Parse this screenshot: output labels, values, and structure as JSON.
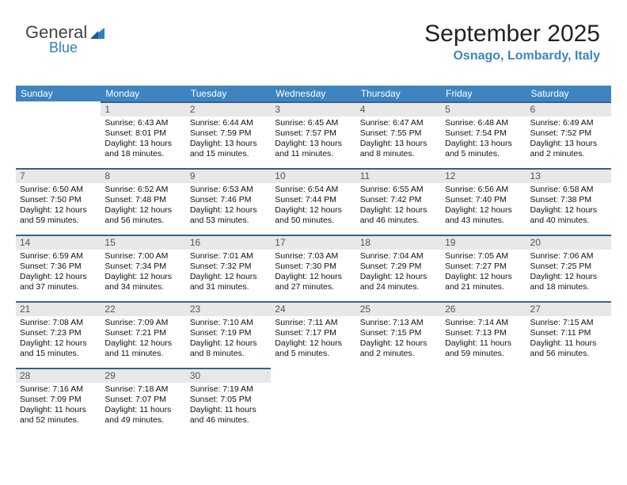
{
  "brand": {
    "name1": "General",
    "name2": "Blue",
    "accent": "#2f7fbf"
  },
  "header": {
    "month": "September 2025",
    "location": "Osnago, Lombardy, Italy"
  },
  "colors": {
    "header_bg": "#3d84c1",
    "header_text": "#ffffff",
    "daynum_bg": "#e8e8e8",
    "daynum_border": "#3d5f88",
    "body_text": "#111111",
    "background": "#ffffff"
  },
  "dayNames": [
    "Sunday",
    "Monday",
    "Tuesday",
    "Wednesday",
    "Thursday",
    "Friday",
    "Saturday"
  ],
  "weeks": [
    [
      null,
      {
        "n": "1",
        "sr": "6:43 AM",
        "ss": "8:01 PM",
        "dl": "13 hours and 18 minutes."
      },
      {
        "n": "2",
        "sr": "6:44 AM",
        "ss": "7:59 PM",
        "dl": "13 hours and 15 minutes."
      },
      {
        "n": "3",
        "sr": "6:45 AM",
        "ss": "7:57 PM",
        "dl": "13 hours and 11 minutes."
      },
      {
        "n": "4",
        "sr": "6:47 AM",
        "ss": "7:55 PM",
        "dl": "13 hours and 8 minutes."
      },
      {
        "n": "5",
        "sr": "6:48 AM",
        "ss": "7:54 PM",
        "dl": "13 hours and 5 minutes."
      },
      {
        "n": "6",
        "sr": "6:49 AM",
        "ss": "7:52 PM",
        "dl": "13 hours and 2 minutes."
      }
    ],
    [
      {
        "n": "7",
        "sr": "6:50 AM",
        "ss": "7:50 PM",
        "dl": "12 hours and 59 minutes."
      },
      {
        "n": "8",
        "sr": "6:52 AM",
        "ss": "7:48 PM",
        "dl": "12 hours and 56 minutes."
      },
      {
        "n": "9",
        "sr": "6:53 AM",
        "ss": "7:46 PM",
        "dl": "12 hours and 53 minutes."
      },
      {
        "n": "10",
        "sr": "6:54 AM",
        "ss": "7:44 PM",
        "dl": "12 hours and 50 minutes."
      },
      {
        "n": "11",
        "sr": "6:55 AM",
        "ss": "7:42 PM",
        "dl": "12 hours and 46 minutes."
      },
      {
        "n": "12",
        "sr": "6:56 AM",
        "ss": "7:40 PM",
        "dl": "12 hours and 43 minutes."
      },
      {
        "n": "13",
        "sr": "6:58 AM",
        "ss": "7:38 PM",
        "dl": "12 hours and 40 minutes."
      }
    ],
    [
      {
        "n": "14",
        "sr": "6:59 AM",
        "ss": "7:36 PM",
        "dl": "12 hours and 37 minutes."
      },
      {
        "n": "15",
        "sr": "7:00 AM",
        "ss": "7:34 PM",
        "dl": "12 hours and 34 minutes."
      },
      {
        "n": "16",
        "sr": "7:01 AM",
        "ss": "7:32 PM",
        "dl": "12 hours and 31 minutes."
      },
      {
        "n": "17",
        "sr": "7:03 AM",
        "ss": "7:30 PM",
        "dl": "12 hours and 27 minutes."
      },
      {
        "n": "18",
        "sr": "7:04 AM",
        "ss": "7:29 PM",
        "dl": "12 hours and 24 minutes."
      },
      {
        "n": "19",
        "sr": "7:05 AM",
        "ss": "7:27 PM",
        "dl": "12 hours and 21 minutes."
      },
      {
        "n": "20",
        "sr": "7:06 AM",
        "ss": "7:25 PM",
        "dl": "12 hours and 18 minutes."
      }
    ],
    [
      {
        "n": "21",
        "sr": "7:08 AM",
        "ss": "7:23 PM",
        "dl": "12 hours and 15 minutes."
      },
      {
        "n": "22",
        "sr": "7:09 AM",
        "ss": "7:21 PM",
        "dl": "12 hours and 11 minutes."
      },
      {
        "n": "23",
        "sr": "7:10 AM",
        "ss": "7:19 PM",
        "dl": "12 hours and 8 minutes."
      },
      {
        "n": "24",
        "sr": "7:11 AM",
        "ss": "7:17 PM",
        "dl": "12 hours and 5 minutes."
      },
      {
        "n": "25",
        "sr": "7:13 AM",
        "ss": "7:15 PM",
        "dl": "12 hours and 2 minutes."
      },
      {
        "n": "26",
        "sr": "7:14 AM",
        "ss": "7:13 PM",
        "dl": "11 hours and 59 minutes."
      },
      {
        "n": "27",
        "sr": "7:15 AM",
        "ss": "7:11 PM",
        "dl": "11 hours and 56 minutes."
      }
    ],
    [
      {
        "n": "28",
        "sr": "7:16 AM",
        "ss": "7:09 PM",
        "dl": "11 hours and 52 minutes."
      },
      {
        "n": "29",
        "sr": "7:18 AM",
        "ss": "7:07 PM",
        "dl": "11 hours and 49 minutes."
      },
      {
        "n": "30",
        "sr": "7:19 AM",
        "ss": "7:05 PM",
        "dl": "11 hours and 46 minutes."
      },
      null,
      null,
      null,
      null
    ]
  ],
  "labels": {
    "sunrise": "Sunrise:",
    "sunset": "Sunset:",
    "daylight": "Daylight:"
  }
}
